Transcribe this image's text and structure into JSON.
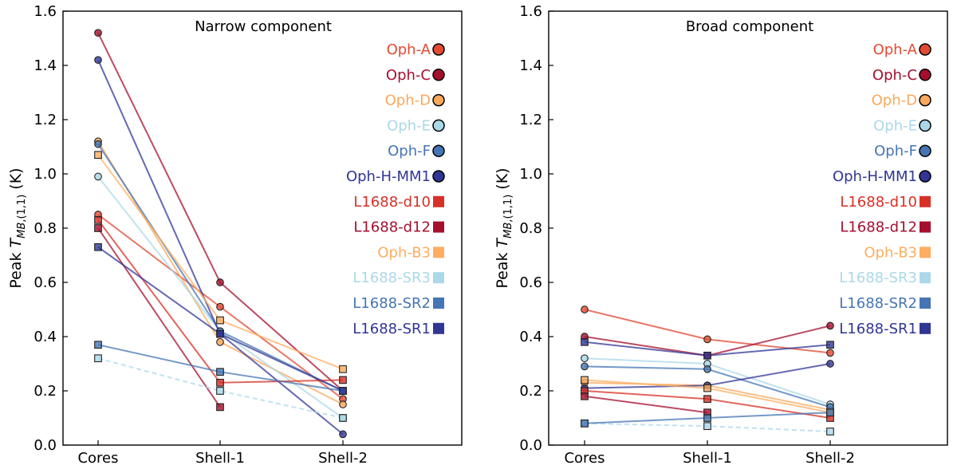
{
  "chart_data": [
    {
      "type": "line",
      "title": "Narrow component",
      "ylabel": "Peak T_MB,(1,1) (K)",
      "categories": [
        "Cores",
        "Shell-1",
        "Shell-2"
      ],
      "ylim": [
        0,
        1.6
      ],
      "yticks": [
        "0.0",
        "0.2",
        "0.4",
        "0.6",
        "0.8",
        "1.0",
        "1.2",
        "1.4",
        "1.6"
      ],
      "legend_position": "top-right",
      "series": [
        {
          "name": "Oph-A",
          "marker": "circle",
          "color": "#e24a33",
          "dashed": false,
          "values": [
            0.85,
            0.51,
            0.17
          ]
        },
        {
          "name": "Oph-C",
          "marker": "circle",
          "color": "#a50f2e",
          "dashed": false,
          "values": [
            1.52,
            0.6,
            0.2
          ]
        },
        {
          "name": "Oph-D",
          "marker": "circle",
          "color": "#fba85c",
          "dashed": false,
          "values": [
            1.12,
            0.38,
            0.15
          ]
        },
        {
          "name": "Oph-E",
          "marker": "circle",
          "color": "#abd8e9",
          "dashed": false,
          "values": [
            0.99,
            0.42,
            0.1
          ]
        },
        {
          "name": "Oph-F",
          "marker": "circle",
          "color": "#4575b4",
          "dashed": false,
          "values": [
            1.11,
            0.42,
            0.2
          ]
        },
        {
          "name": "Oph-H-MM1",
          "marker": "circle",
          "color": "#313695",
          "dashed": false,
          "values": [
            1.42,
            0.41,
            0.04
          ]
        },
        {
          "name": "L1688-d10",
          "marker": "square",
          "color": "#d73027",
          "dashed": false,
          "values": [
            0.83,
            0.23,
            0.24
          ]
        },
        {
          "name": "L1688-d12",
          "marker": "square",
          "color": "#a50f2e",
          "dashed": false,
          "values": [
            0.8,
            0.14,
            null
          ]
        },
        {
          "name": "Oph-B3",
          "marker": "square",
          "color": "#fdae61",
          "dashed": false,
          "values": [
            1.07,
            0.46,
            0.28
          ]
        },
        {
          "name": "L1688-SR3",
          "marker": "square",
          "color": "#abd8e9",
          "dashed": true,
          "values": [
            0.32,
            0.2,
            0.1
          ]
        },
        {
          "name": "L1688-SR2",
          "marker": "square",
          "color": "#4575b4",
          "dashed": false,
          "values": [
            0.37,
            0.27,
            0.2
          ]
        },
        {
          "name": "L1688-SR1",
          "marker": "square",
          "color": "#313695",
          "dashed": false,
          "values": [
            0.73,
            0.41,
            0.2
          ]
        }
      ]
    },
    {
      "type": "line",
      "title": "Broad component",
      "ylabel": "Peak T_MB,(1,1) (K)",
      "categories": [
        "Cores",
        "Shell-1",
        "Shell-2"
      ],
      "ylim": [
        0,
        1.6
      ],
      "yticks": [
        "0.0",
        "0.2",
        "0.4",
        "0.6",
        "0.8",
        "1.0",
        "1.2",
        "1.4",
        "1.6"
      ],
      "legend_position": "top-right",
      "series": [
        {
          "name": "Oph-A",
          "marker": "circle",
          "color": "#e24a33",
          "dashed": false,
          "values": [
            0.5,
            0.39,
            0.34
          ]
        },
        {
          "name": "Oph-C",
          "marker": "circle",
          "color": "#a50f2e",
          "dashed": false,
          "values": [
            0.4,
            0.33,
            0.44
          ]
        },
        {
          "name": "Oph-D",
          "marker": "circle",
          "color": "#fba85c",
          "dashed": false,
          "values": [
            0.23,
            0.22,
            0.13
          ]
        },
        {
          "name": "Oph-E",
          "marker": "circle",
          "color": "#abd8e9",
          "dashed": false,
          "values": [
            0.32,
            0.3,
            0.15
          ]
        },
        {
          "name": "Oph-F",
          "marker": "circle",
          "color": "#4575b4",
          "dashed": false,
          "values": [
            0.29,
            0.28,
            0.14
          ]
        },
        {
          "name": "Oph-H-MM1",
          "marker": "circle",
          "color": "#313695",
          "dashed": false,
          "values": [
            0.21,
            0.22,
            0.3
          ]
        },
        {
          "name": "L1688-d10",
          "marker": "square",
          "color": "#d73027",
          "dashed": false,
          "values": [
            0.2,
            0.17,
            0.1
          ]
        },
        {
          "name": "L1688-d12",
          "marker": "square",
          "color": "#a50f2e",
          "dashed": false,
          "values": [
            0.18,
            0.12,
            null
          ]
        },
        {
          "name": "Oph-B3",
          "marker": "square",
          "color": "#fdae61",
          "dashed": false,
          "values": [
            0.24,
            0.21,
            0.12
          ]
        },
        {
          "name": "L1688-SR3",
          "marker": "square",
          "color": "#abd8e9",
          "dashed": true,
          "values": [
            0.08,
            0.07,
            0.05
          ]
        },
        {
          "name": "L1688-SR2",
          "marker": "square",
          "color": "#4575b4",
          "dashed": false,
          "values": [
            0.08,
            0.1,
            0.12
          ]
        },
        {
          "name": "L1688-SR1",
          "marker": "square",
          "color": "#313695",
          "dashed": false,
          "values": [
            0.38,
            0.33,
            0.37
          ]
        }
      ]
    }
  ]
}
